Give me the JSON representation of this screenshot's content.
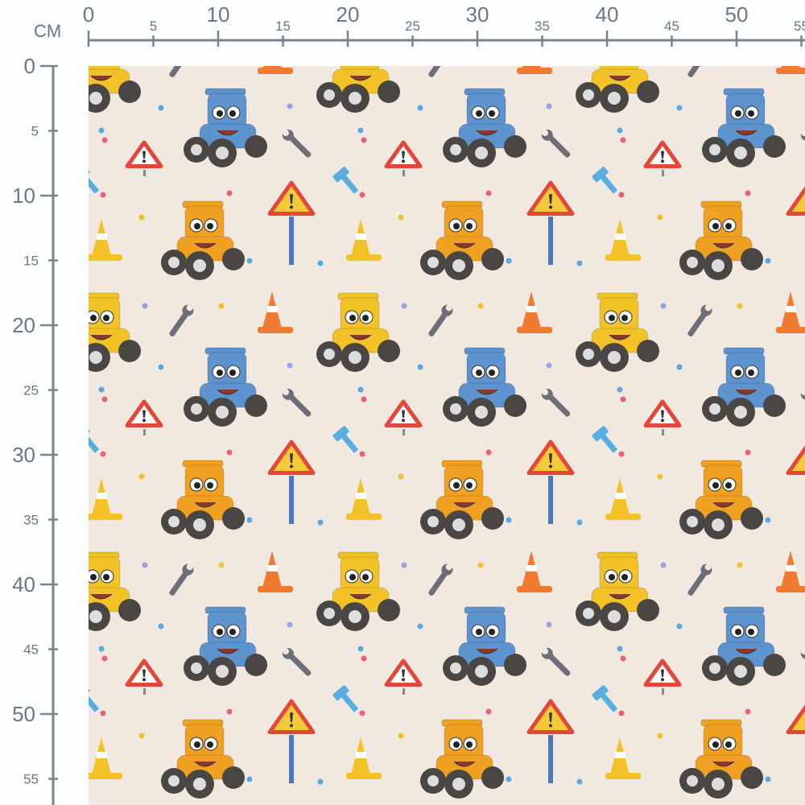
{
  "ruler": {
    "unit_label": "CM",
    "horizontal_ticks": [
      "0",
      "5",
      "10",
      "15",
      "20",
      "25",
      "30",
      "35",
      "40",
      "45",
      "50",
      "55"
    ],
    "vertical_ticks": [
      "0",
      "5",
      "10",
      "15",
      "20",
      "25",
      "30",
      "35",
      "40",
      "45",
      "50",
      "55"
    ],
    "color": "#7a838b"
  },
  "fabric": {
    "background_color": "#f1e8e0",
    "motifs": [
      "yellow-tractor",
      "blue-tractor",
      "orange-tractor",
      "warning-sign",
      "warning-sign-on-pole",
      "traffic-cone-yellow",
      "traffic-cone-orange",
      "wrench",
      "blue-hammer",
      "confetti-dots"
    ],
    "colors": {
      "yellow": "#f2c227",
      "blue": "#5d93cf",
      "orange": "#f0a020",
      "red": "#e2483a",
      "grey": "#6d6f78",
      "tool_blue": "#58aee0"
    }
  }
}
